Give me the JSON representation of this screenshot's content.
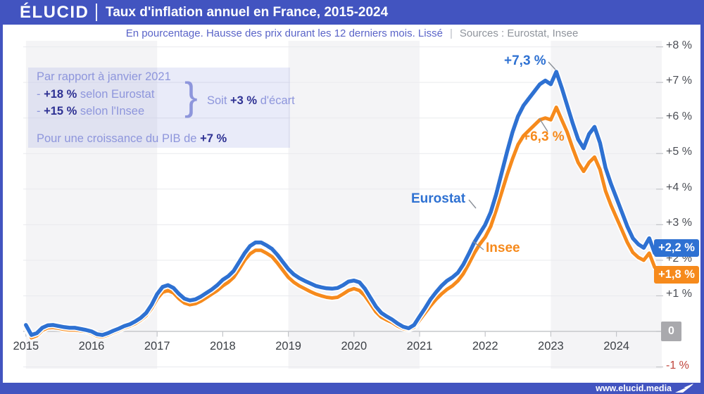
{
  "header": {
    "logo": "ÉLUCID",
    "title": "Taux d'inflation annuel en France, 2015-2024"
  },
  "subtitle": {
    "description": "En pourcentage. Hausse des prix durant les 12 derniers mois. Lissé",
    "separator": "|",
    "sources": "Sources : Eurostat, Insee"
  },
  "annotation_box": {
    "line1": "Par rapport à janvier 2021",
    "item1_prefix": "- ",
    "item1_value": "+18 %",
    "item1_suffix": " selon Eurostat",
    "item2_prefix": "- ",
    "item2_value": "+15 %",
    "item2_suffix": " selon l'Insee",
    "brace": "}",
    "aside_prefix": "Soit ",
    "aside_value": "+3 %",
    "aside_suffix": " d'écart",
    "line4_prefix": "Pour une croissance du PIB de ",
    "line4_value": "+7 %"
  },
  "footer": {
    "url": "www.elucid.media"
  },
  "colors": {
    "brand_blue": "#4254c0",
    "eurostat_blue": "#2e71d2",
    "insee_orange": "#f68a1c",
    "band_gray": "#f4f4f6",
    "grid": "#e9eaee",
    "zero_line": "#c6c8cc",
    "negative_red": "#c0443c",
    "zero_badge_gray": "#a9a9ad"
  },
  "chart_data": {
    "type": "line",
    "title": "Taux d'inflation annuel en France, 2015-2024",
    "unit": "%",
    "frequency": "monthly",
    "start": "2015-01",
    "end": "2024-08",
    "xlim": [
      2015.0,
      2024.67
    ],
    "ylim": [
      -1.1,
      8.15
    ],
    "grid": true,
    "legend_position": "inline-labels",
    "x_ticks": [
      "2015",
      "2016",
      "2017",
      "2018",
      "2019",
      "2020",
      "2021",
      "2022",
      "2023",
      "2024"
    ],
    "y_ticks": [
      {
        "value": 8,
        "label": "+8 %"
      },
      {
        "value": 7,
        "label": "+7 %"
      },
      {
        "value": 6,
        "label": "+6 %"
      },
      {
        "value": 5,
        "label": "+5 %"
      },
      {
        "value": 4,
        "label": "+4 %"
      },
      {
        "value": 3,
        "label": "+3 %"
      },
      {
        "value": 2,
        "label": "+2 %"
      },
      {
        "value": 1,
        "label": "+1 %"
      },
      {
        "value": 0,
        "label": "0"
      },
      {
        "value": -1,
        "label": "-1 %"
      }
    ],
    "series": [
      {
        "name": "Eurostat",
        "color": "#2e71d2",
        "peak_label": "+7,3 %",
        "peak_month": "2023-02",
        "end_label": "+2,2 %",
        "end_month": "2024-08",
        "values": [
          0.18,
          -0.1,
          -0.05,
          0.1,
          0.17,
          0.18,
          0.15,
          0.12,
          0.1,
          0.1,
          0.07,
          0.04,
          0.0,
          -0.08,
          -0.1,
          -0.05,
          0.02,
          0.08,
          0.15,
          0.2,
          0.28,
          0.38,
          0.52,
          0.75,
          1.05,
          1.25,
          1.3,
          1.22,
          1.05,
          0.92,
          0.87,
          0.9,
          0.98,
          1.08,
          1.18,
          1.3,
          1.45,
          1.55,
          1.7,
          1.95,
          2.2,
          2.4,
          2.5,
          2.5,
          2.42,
          2.32,
          2.15,
          1.95,
          1.75,
          1.6,
          1.5,
          1.42,
          1.35,
          1.28,
          1.24,
          1.21,
          1.2,
          1.22,
          1.3,
          1.4,
          1.43,
          1.38,
          1.2,
          0.95,
          0.7,
          0.52,
          0.42,
          0.33,
          0.22,
          0.13,
          0.09,
          0.18,
          0.42,
          0.65,
          0.9,
          1.1,
          1.28,
          1.42,
          1.52,
          1.65,
          1.88,
          2.18,
          2.5,
          2.75,
          3.0,
          3.35,
          3.85,
          4.45,
          5.05,
          5.6,
          6.05,
          6.35,
          6.55,
          6.75,
          6.95,
          7.05,
          6.95,
          7.3,
          6.85,
          6.35,
          5.85,
          5.4,
          5.15,
          5.55,
          5.75,
          5.3,
          4.6,
          4.15,
          3.75,
          3.35,
          2.95,
          2.62,
          2.45,
          2.35,
          2.62,
          2.2
        ]
      },
      {
        "name": "Insee",
        "color": "#f68a1c",
        "peak_label": "+6,3 %",
        "peak_month": "2023-02",
        "end_label": "+1,8 %",
        "end_month": "2024-08",
        "values": [
          0.1,
          -0.18,
          -0.12,
          0.03,
          0.1,
          0.11,
          0.09,
          0.06,
          0.04,
          0.04,
          0.02,
          0.0,
          -0.05,
          -0.13,
          -0.15,
          -0.1,
          -0.03,
          0.03,
          0.1,
          0.15,
          0.22,
          0.32,
          0.45,
          0.65,
          0.92,
          1.1,
          1.15,
          1.08,
          0.92,
          0.8,
          0.75,
          0.78,
          0.85,
          0.95,
          1.05,
          1.15,
          1.28,
          1.38,
          1.52,
          1.75,
          2.0,
          2.18,
          2.28,
          2.28,
          2.2,
          2.1,
          1.92,
          1.72,
          1.52,
          1.38,
          1.28,
          1.2,
          1.12,
          1.05,
          1.0,
          0.96,
          0.94,
          0.96,
          1.05,
          1.15,
          1.2,
          1.15,
          1.0,
          0.78,
          0.55,
          0.4,
          0.32,
          0.25,
          0.15,
          0.08,
          0.05,
          0.12,
          0.32,
          0.52,
          0.72,
          0.9,
          1.05,
          1.18,
          1.28,
          1.42,
          1.62,
          1.9,
          2.2,
          2.45,
          2.65,
          2.95,
          3.4,
          3.9,
          4.4,
          4.85,
          5.25,
          5.5,
          5.65,
          5.8,
          5.95,
          6.0,
          5.95,
          6.3,
          5.95,
          5.6,
          5.15,
          4.75,
          4.5,
          4.75,
          4.9,
          4.55,
          3.95,
          3.55,
          3.2,
          2.85,
          2.5,
          2.22,
          2.08,
          2.0,
          2.2,
          1.8
        ]
      }
    ]
  }
}
